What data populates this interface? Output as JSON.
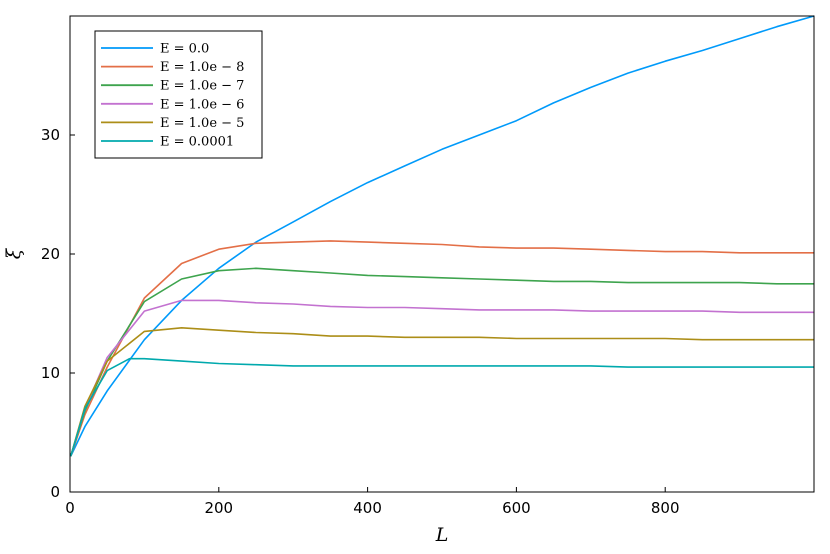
{
  "chart_data": {
    "type": "line",
    "xlabel": "L",
    "ylabel": "ξ",
    "xlim": [
      0,
      1000
    ],
    "ylim": [
      0,
      40
    ],
    "xticks": [
      0,
      200,
      400,
      600,
      800
    ],
    "yticks": [
      0,
      10,
      20,
      30
    ],
    "grid": false,
    "legend_position": "top-left",
    "series": [
      {
        "name": "E = 0.0",
        "color": "#009AFA",
        "x": [
          1,
          20,
          50,
          100,
          150,
          200,
          250,
          300,
          350,
          400,
          450,
          500,
          550,
          600,
          650,
          700,
          750,
          800,
          850,
          900,
          950,
          1000
        ],
        "y": [
          3.0,
          5.5,
          8.5,
          12.8,
          16.1,
          18.8,
          21.0,
          22.7,
          24.4,
          26.0,
          27.4,
          28.8,
          30.0,
          31.2,
          32.7,
          34.0,
          35.2,
          36.2,
          37.1,
          38.1,
          39.1,
          40.0
        ]
      },
      {
        "name": "E = 1.0e − 8",
        "color": "#E36F47",
        "x": [
          1,
          20,
          50,
          100,
          150,
          200,
          250,
          300,
          350,
          400,
          450,
          500,
          550,
          600,
          650,
          700,
          750,
          800,
          850,
          900,
          950,
          1000
        ],
        "y": [
          3.0,
          6.5,
          10.5,
          16.3,
          19.2,
          20.4,
          20.9,
          21.0,
          21.1,
          21.0,
          20.9,
          20.8,
          20.6,
          20.5,
          20.5,
          20.4,
          20.3,
          20.2,
          20.2,
          20.1,
          20.1,
          20.1
        ]
      },
      {
        "name": "E = 1.0e − 7",
        "color": "#3EA44E",
        "x": [
          1,
          20,
          50,
          100,
          150,
          200,
          250,
          300,
          350,
          400,
          450,
          500,
          550,
          600,
          650,
          700,
          750,
          800,
          850,
          900,
          950,
          1000
        ],
        "y": [
          3.0,
          6.8,
          11.0,
          16.0,
          17.9,
          18.6,
          18.8,
          18.6,
          18.4,
          18.2,
          18.1,
          18.0,
          17.9,
          17.8,
          17.7,
          17.7,
          17.6,
          17.6,
          17.6,
          17.6,
          17.5,
          17.5
        ]
      },
      {
        "name": "E = 1.0e − 6",
        "color": "#C372D0",
        "x": [
          1,
          20,
          50,
          100,
          150,
          200,
          250,
          300,
          350,
          400,
          450,
          500,
          550,
          600,
          650,
          700,
          750,
          800,
          850,
          900,
          950,
          1000
        ],
        "y": [
          3.0,
          7.0,
          11.3,
          15.2,
          16.1,
          16.1,
          15.9,
          15.8,
          15.6,
          15.5,
          15.5,
          15.4,
          15.3,
          15.3,
          15.3,
          15.2,
          15.2,
          15.2,
          15.2,
          15.1,
          15.1,
          15.1
        ]
      },
      {
        "name": "E = 1.0e − 5",
        "color": "#AC8E18",
        "x": [
          1,
          20,
          50,
          100,
          150,
          200,
          250,
          300,
          350,
          400,
          450,
          500,
          550,
          600,
          650,
          700,
          750,
          800,
          850,
          900,
          950,
          1000
        ],
        "y": [
          3.0,
          7.2,
          11.0,
          13.5,
          13.8,
          13.6,
          13.4,
          13.3,
          13.1,
          13.1,
          13.0,
          13.0,
          13.0,
          12.9,
          12.9,
          12.9,
          12.9,
          12.9,
          12.8,
          12.8,
          12.8,
          12.8
        ]
      },
      {
        "name": "E = 0.0001",
        "color": "#00A9AD",
        "x": [
          1,
          20,
          50,
          80,
          100,
          150,
          200,
          250,
          300,
          350,
          400,
          450,
          500,
          550,
          600,
          650,
          700,
          750,
          800,
          850,
          900,
          950,
          1000
        ],
        "y": [
          3.0,
          7.0,
          10.2,
          11.2,
          11.2,
          11.0,
          10.8,
          10.7,
          10.6,
          10.6,
          10.6,
          10.6,
          10.6,
          10.6,
          10.6,
          10.6,
          10.6,
          10.5,
          10.5,
          10.5,
          10.5,
          10.5,
          10.5
        ]
      }
    ]
  }
}
